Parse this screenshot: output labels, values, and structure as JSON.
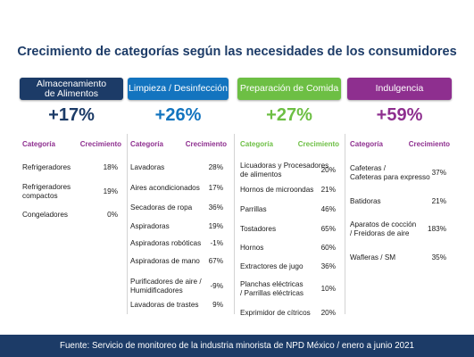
{
  "title": "Crecimiento de categorías según las necesidades de los consumidores",
  "footer": "Fuente: Servicio de monitoreo de la industria minorista de NPD México / enero a junio 2021",
  "colors": {
    "title": "#1c3b67",
    "footer_bg": "#1c3b67",
    "column_header": "#8e2f8f"
  },
  "chart_data": {
    "type": "table",
    "columns_label": [
      "Categoría",
      "Crecimiento"
    ],
    "groups": [
      {
        "name": "Almacenamiento\nde Alimentos",
        "growth": "+17%",
        "color": "#1c3b67",
        "items": [
          {
            "name": "Refrigeradores",
            "value": "18%"
          },
          {
            "name": "Refrigeradores\ncompactos",
            "value": "19%"
          },
          {
            "name": "Congeladores",
            "value": "0%"
          }
        ]
      },
      {
        "name": "Limpieza / Desinfección",
        "growth": "+26%",
        "color": "#1374bf",
        "items": [
          {
            "name": "Lavadoras",
            "value": "28%"
          },
          {
            "name": "Aires acondicionados",
            "value": "17%"
          },
          {
            "name": "Secadoras de ropa",
            "value": "36%"
          },
          {
            "name": "Aspiradoras",
            "value": "19%"
          },
          {
            "name": "Aspiradoras robóticas",
            "value": "-1%"
          },
          {
            "name": "Aspiradoras de mano",
            "value": "67%"
          },
          {
            "name": "Purificadores de aire /\nHumidificadores",
            "value": "-9%"
          },
          {
            "name": "Lavadoras de trastes",
            "value": "9%"
          }
        ]
      },
      {
        "name": "Preparación de Comida",
        "growth": "+27%",
        "color": "#6dbf44",
        "items": [
          {
            "name": "Licuadoras y Procesadores\nde alimentos",
            "value": "20%"
          },
          {
            "name": "Hornos de microondas",
            "value": "21%"
          },
          {
            "name": "Parrillas",
            "value": "46%"
          },
          {
            "name": "Tostadores",
            "value": "65%"
          },
          {
            "name": "Hornos",
            "value": "60%"
          },
          {
            "name": "Extractores de jugo",
            "value": "36%"
          },
          {
            "name": "Planchas eléctricas\n/ Parrillas eléctricas",
            "value": "10%"
          },
          {
            "name": "Exprimidor de cítricos",
            "value": "20%"
          }
        ]
      },
      {
        "name": "Indulgencia",
        "growth": "+59%",
        "color": "#8e2f8f",
        "items": [
          {
            "name": "Cafeteras /\nCafeteras para expresso",
            "value": "37%"
          },
          {
            "name": "Batidoras",
            "value": "21%"
          },
          {
            "name": "Aparatos de cocción\n/ Freidoras de aire",
            "value": "183%"
          },
          {
            "name": "Wafleras / SM",
            "value": "35%"
          }
        ]
      }
    ]
  }
}
